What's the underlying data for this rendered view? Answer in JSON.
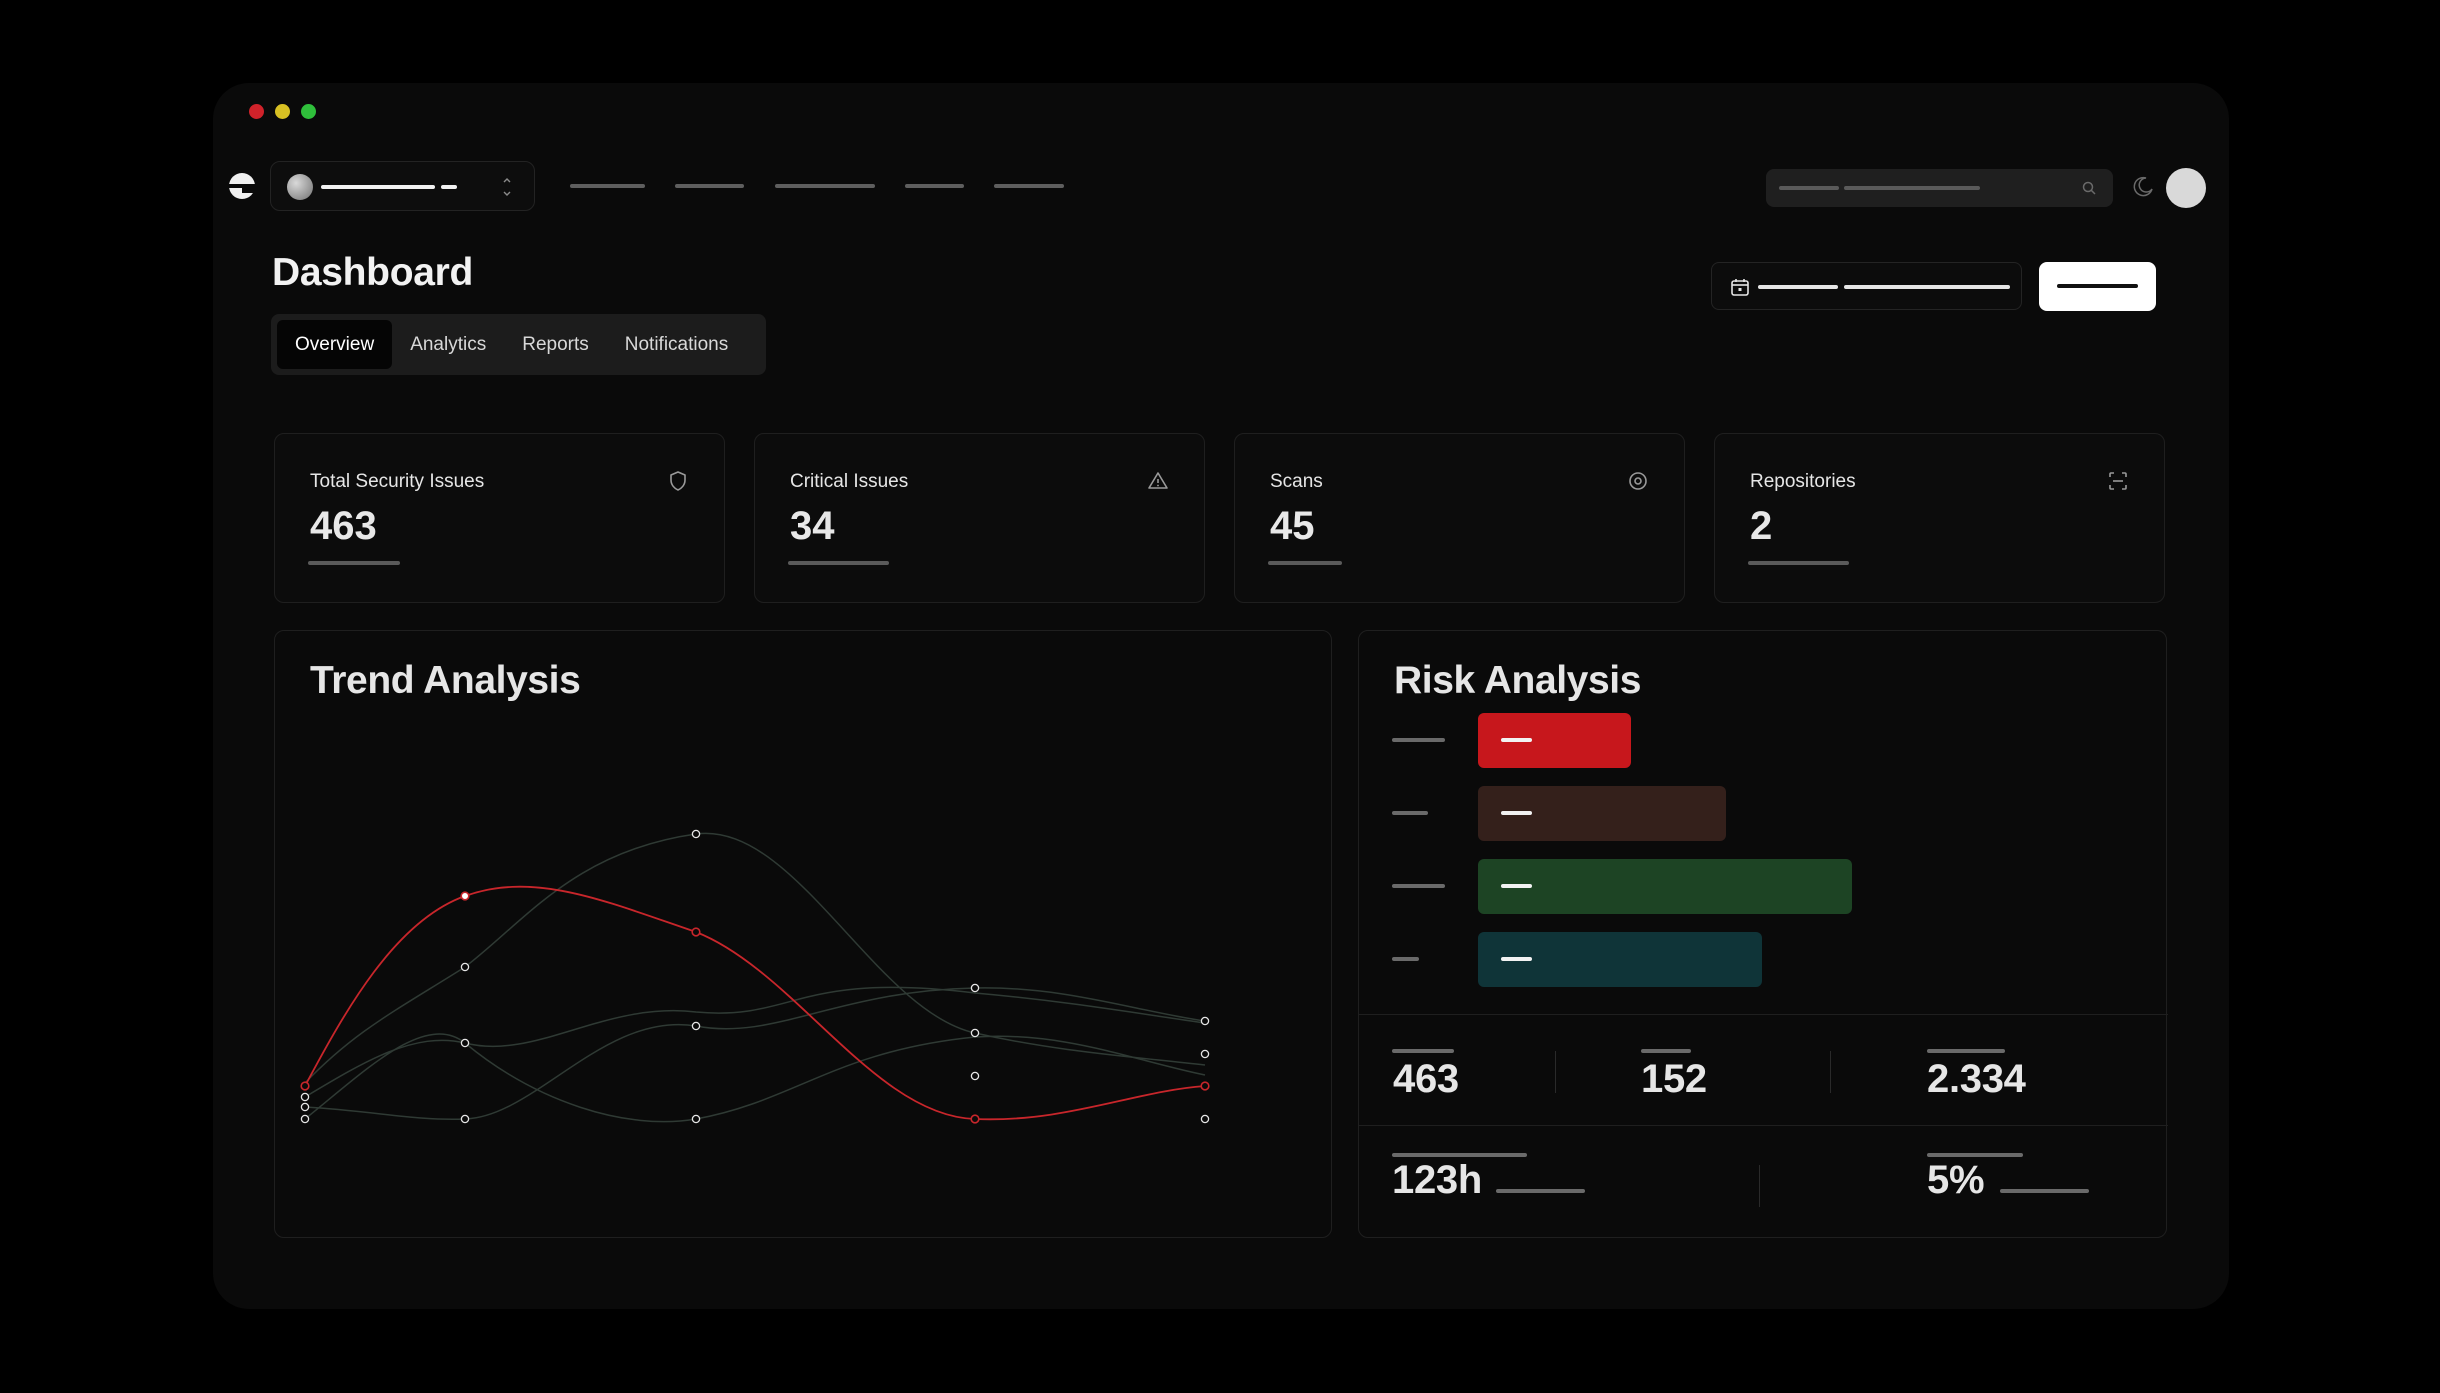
{
  "page": {
    "title": "Dashboard"
  },
  "tabs": [
    {
      "label": "Overview",
      "active": true
    },
    {
      "label": "Analytics",
      "active": false
    },
    {
      "label": "Reports",
      "active": false
    },
    {
      "label": "Notifications",
      "active": false
    }
  ],
  "stats": [
    {
      "label": "Total Security Issues",
      "value": "463",
      "icon": "shield-icon"
    },
    {
      "label": "Critical Issues",
      "value": "34",
      "icon": "alert-triangle-icon"
    },
    {
      "label": "Scans",
      "value": "45",
      "icon": "scan-eye-icon"
    },
    {
      "label": "Repositories",
      "value": "2",
      "icon": "scan-frame-icon"
    }
  ],
  "trend": {
    "title": "Trend Analysis",
    "accent_color": "#c8262b",
    "muted_color": "#2f3a34"
  },
  "risk": {
    "title": "Risk Analysis",
    "bars": [
      {
        "level": 0.34,
        "color": "#c7171c"
      },
      {
        "level": 0.55,
        "color": "#34201b"
      },
      {
        "level": 0.83,
        "color": "#1d4424"
      },
      {
        "level": 0.63,
        "color": "#0f3438"
      }
    ],
    "metrics": {
      "m1": "463",
      "m2": "152",
      "m3": "2.334",
      "m4": "123h",
      "m5": "5%"
    }
  },
  "colors": {
    "background": "#000000",
    "window": "#0a0a0a",
    "primary_button": "#ffffff"
  }
}
